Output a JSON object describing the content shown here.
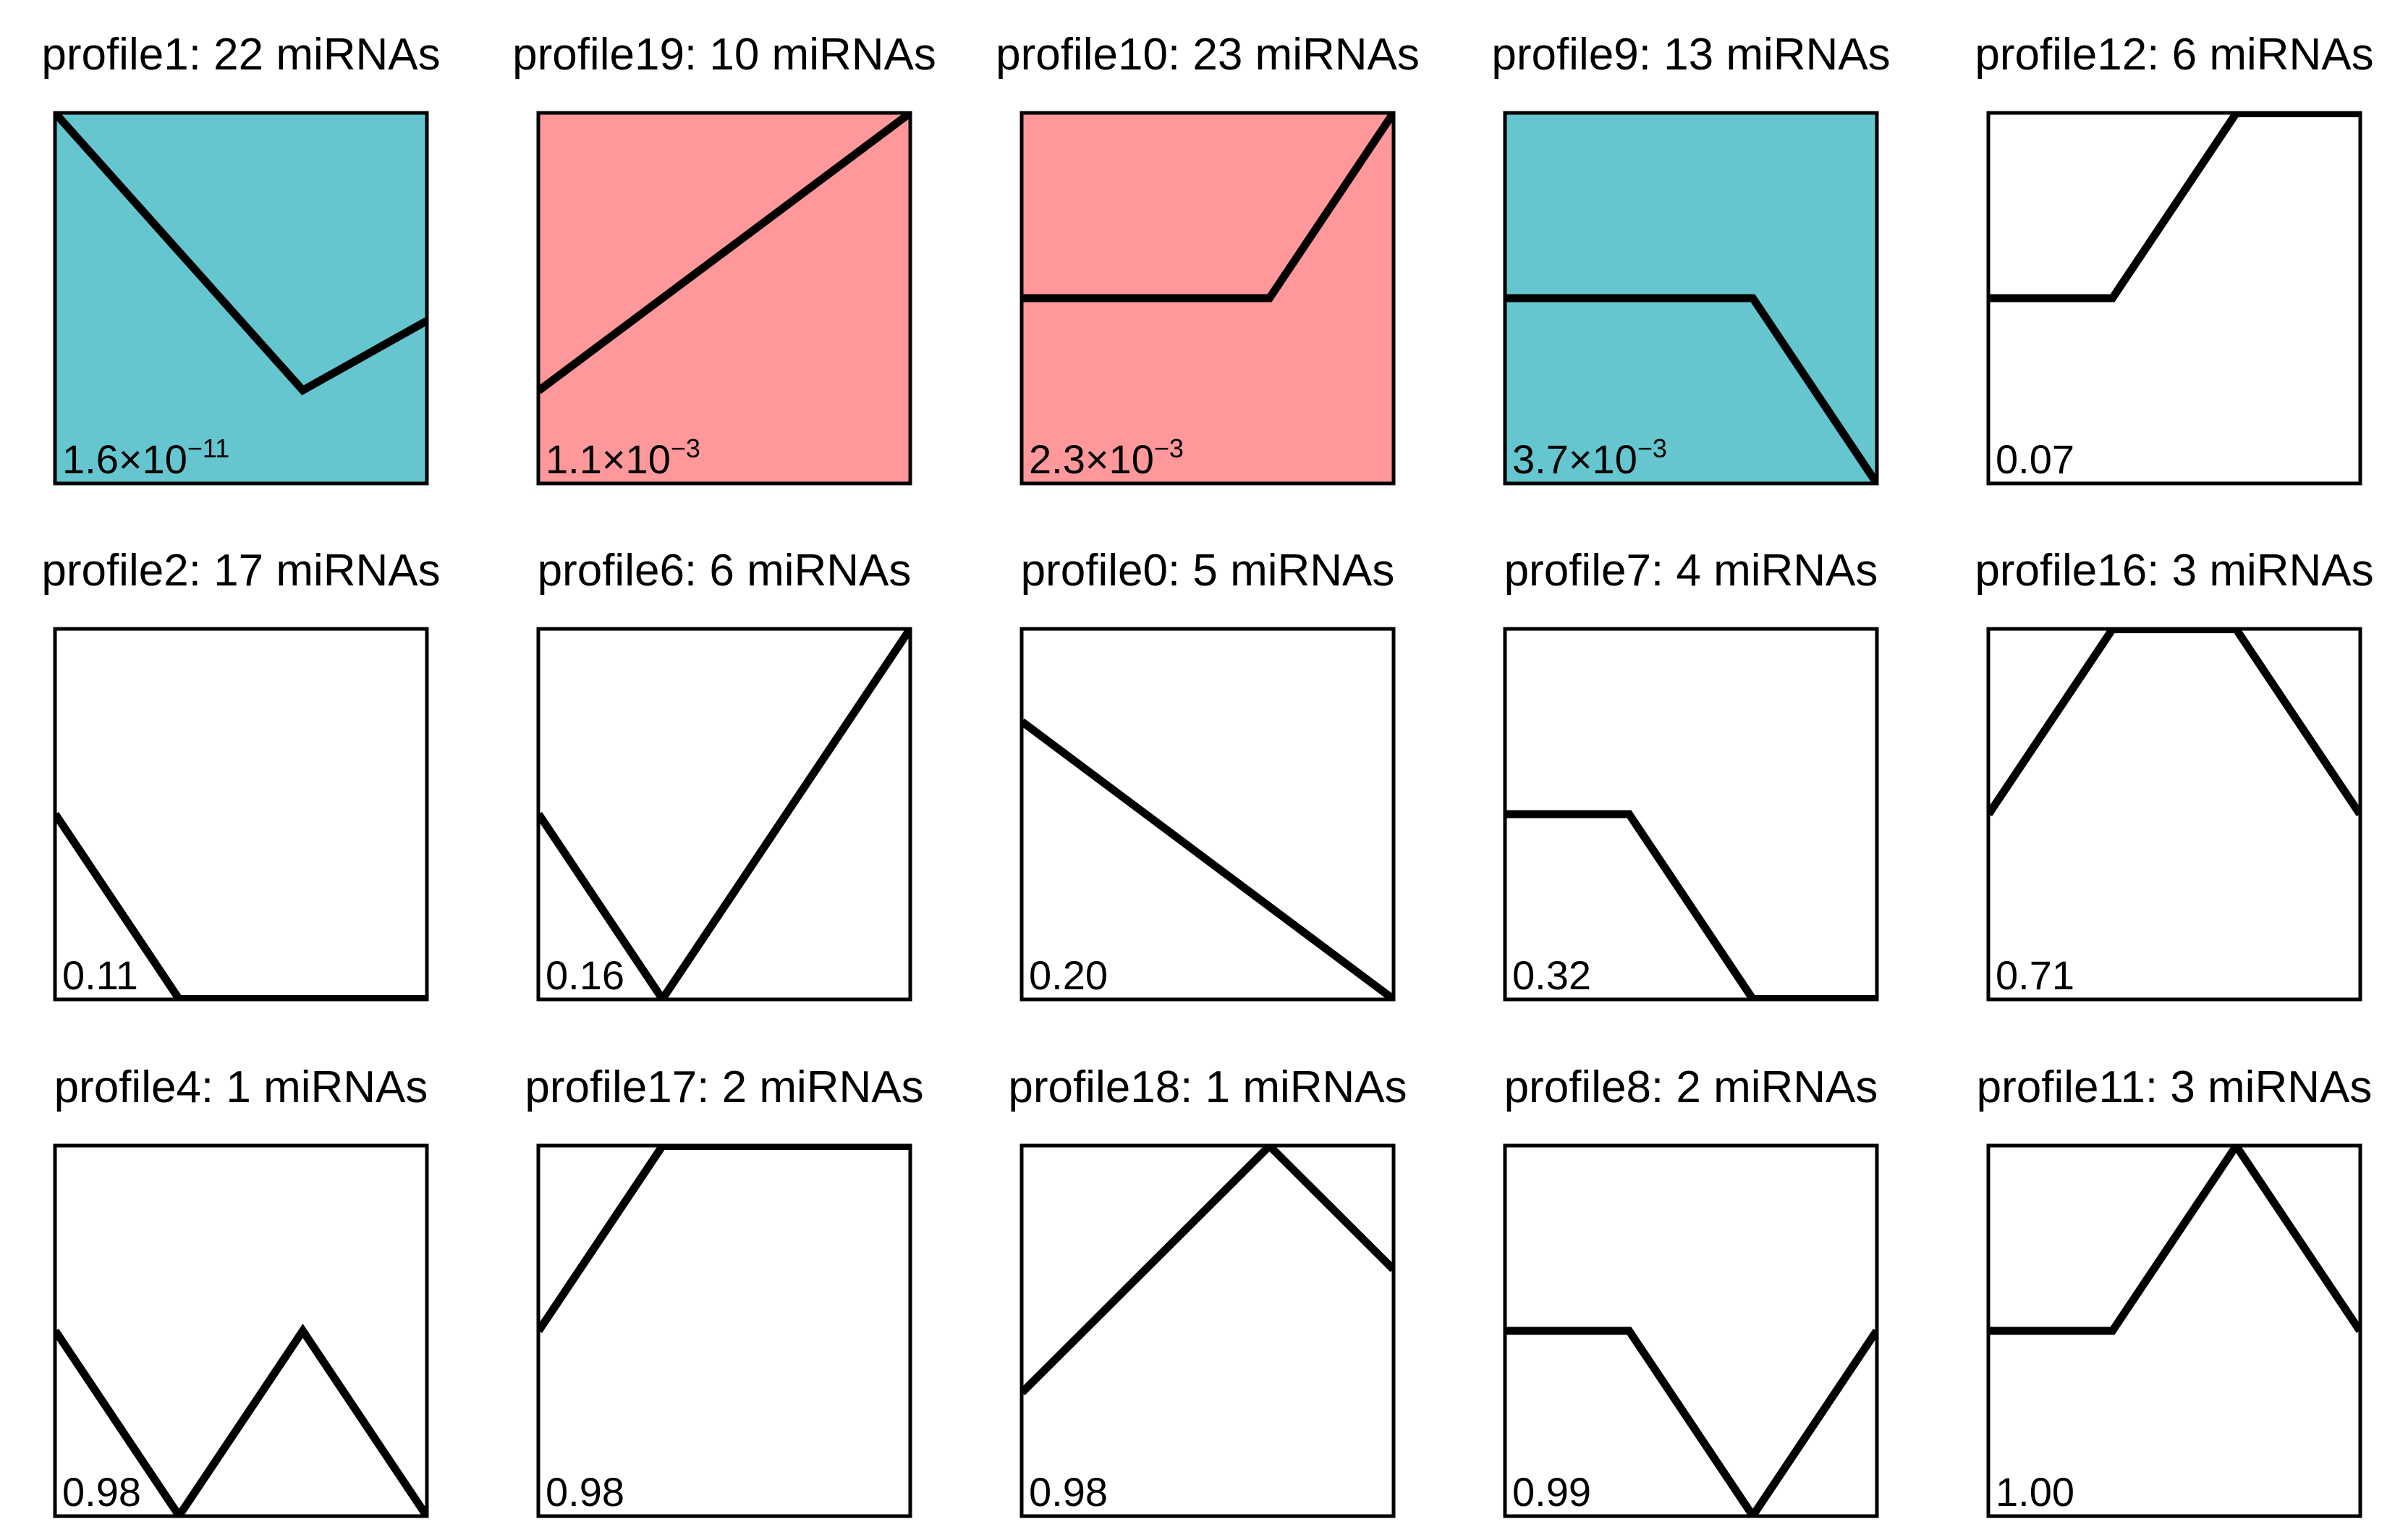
{
  "colors": {
    "down_significant": "#66c6cf",
    "up_significant": "#fe989a",
    "not_significant": "#ffffff"
  },
  "chart_data": [
    {
      "type": "line",
      "title": "profile1: 22 miRNAs",
      "pvalue": {
        "mantissa": "1.6×10",
        "exponent": "−11"
      },
      "x": [
        0,
        1,
        2,
        3
      ],
      "values": [
        0,
        -1,
        -2,
        -1.5
      ],
      "ylim": [
        -2.67,
        0.0
      ],
      "fill": "down_significant"
    },
    {
      "type": "line",
      "title": "profile19: 10 miRNAs",
      "pvalue": {
        "mantissa": "1.1×10",
        "exponent": "−3"
      },
      "x": [
        0,
        1,
        2,
        3
      ],
      "values": [
        0,
        1,
        2,
        3
      ],
      "ylim": [
        -1.0,
        3.0
      ],
      "fill": "up_significant"
    },
    {
      "type": "line",
      "title": "profile10: 23 miRNAs",
      "pvalue": {
        "mantissa": "2.3×10",
        "exponent": "−3"
      },
      "x": [
        0,
        1,
        2,
        3
      ],
      "values": [
        0,
        0,
        0,
        1
      ],
      "ylim": [
        -1.0,
        1.0
      ],
      "fill": "up_significant"
    },
    {
      "type": "line",
      "title": "profile9: 13 miRNAs",
      "pvalue": {
        "mantissa": "3.7×10",
        "exponent": "−3"
      },
      "x": [
        0,
        1,
        2,
        3
      ],
      "values": [
        0,
        0,
        0,
        -1
      ],
      "ylim": [
        -1.0,
        1.0
      ],
      "fill": "down_significant"
    },
    {
      "type": "line",
      "title": "profile12: 6 miRNAs",
      "pvalue": {
        "mantissa": "0.07",
        "exponent": ""
      },
      "x": [
        0,
        1,
        2,
        3
      ],
      "values": [
        0,
        0,
        1,
        1
      ],
      "ylim": [
        -1.0,
        1.0
      ],
      "fill": "not_significant"
    },
    {
      "type": "line",
      "title": "profile2: 17 miRNAs",
      "pvalue": {
        "mantissa": "0.11",
        "exponent": ""
      },
      "x": [
        0,
        1,
        2,
        3
      ],
      "values": [
        0,
        -1,
        -1,
        -1
      ],
      "ylim": [
        -1.0,
        1.0
      ],
      "fill": "not_significant"
    },
    {
      "type": "line",
      "title": "profile6: 6 miRNAs",
      "pvalue": {
        "mantissa": "0.16",
        "exponent": ""
      },
      "x": [
        0,
        1,
        2,
        3
      ],
      "values": [
        0,
        -1,
        0,
        1
      ],
      "ylim": [
        -1.0,
        1.0
      ],
      "fill": "not_significant"
    },
    {
      "type": "line",
      "title": "profile0: 5 miRNAs",
      "pvalue": {
        "mantissa": "0.20",
        "exponent": ""
      },
      "x": [
        0,
        1,
        2,
        3
      ],
      "values": [
        0,
        -1,
        -2,
        -3
      ],
      "ylim": [
        -3.0,
        1.0
      ],
      "fill": "not_significant"
    },
    {
      "type": "line",
      "title": "profile7: 4 miRNAs",
      "pvalue": {
        "mantissa": "0.32",
        "exponent": ""
      },
      "x": [
        0,
        1,
        2,
        3
      ],
      "values": [
        0,
        0,
        -1,
        -1
      ],
      "ylim": [
        -1.0,
        1.0
      ],
      "fill": "not_significant"
    },
    {
      "type": "line",
      "title": "profile16: 3 miRNAs",
      "pvalue": {
        "mantissa": "0.71",
        "exponent": ""
      },
      "x": [
        0,
        1,
        2,
        3
      ],
      "values": [
        0,
        1,
        1,
        0
      ],
      "ylim": [
        -1.0,
        1.0
      ],
      "fill": "not_significant"
    },
    {
      "type": "line",
      "title": "profile4: 1 miRNAs",
      "pvalue": {
        "mantissa": "0.98",
        "exponent": ""
      },
      "x": [
        0,
        1,
        2,
        3
      ],
      "values": [
        0,
        -1,
        0,
        -1
      ],
      "ylim": [
        -1.0,
        1.0
      ],
      "fill": "not_significant"
    },
    {
      "type": "line",
      "title": "profile17: 2 miRNAs",
      "pvalue": {
        "mantissa": "0.98",
        "exponent": ""
      },
      "x": [
        0,
        1,
        2,
        3
      ],
      "values": [
        0,
        1,
        1,
        1
      ],
      "ylim": [
        -1.0,
        1.0
      ],
      "fill": "not_significant"
    },
    {
      "type": "line",
      "title": "profile18: 1 miRNAs",
      "pvalue": {
        "mantissa": "0.98",
        "exponent": ""
      },
      "x": [
        0,
        1,
        2,
        3
      ],
      "values": [
        0,
        1,
        2,
        1
      ],
      "ylim": [
        -1.0,
        2.0
      ],
      "fill": "not_significant"
    },
    {
      "type": "line",
      "title": "profile8: 2 miRNAs",
      "pvalue": {
        "mantissa": "0.99",
        "exponent": ""
      },
      "x": [
        0,
        1,
        2,
        3
      ],
      "values": [
        0,
        0,
        -1,
        0
      ],
      "ylim": [
        -1.0,
        1.0
      ],
      "fill": "not_significant"
    },
    {
      "type": "line",
      "title": "profile11: 3 miRNAs",
      "pvalue": {
        "mantissa": "1.00",
        "exponent": ""
      },
      "x": [
        0,
        1,
        2,
        3
      ],
      "values": [
        0,
        0,
        1,
        0
      ],
      "ylim": [
        -1.0,
        1.0
      ],
      "fill": "not_significant"
    }
  ]
}
